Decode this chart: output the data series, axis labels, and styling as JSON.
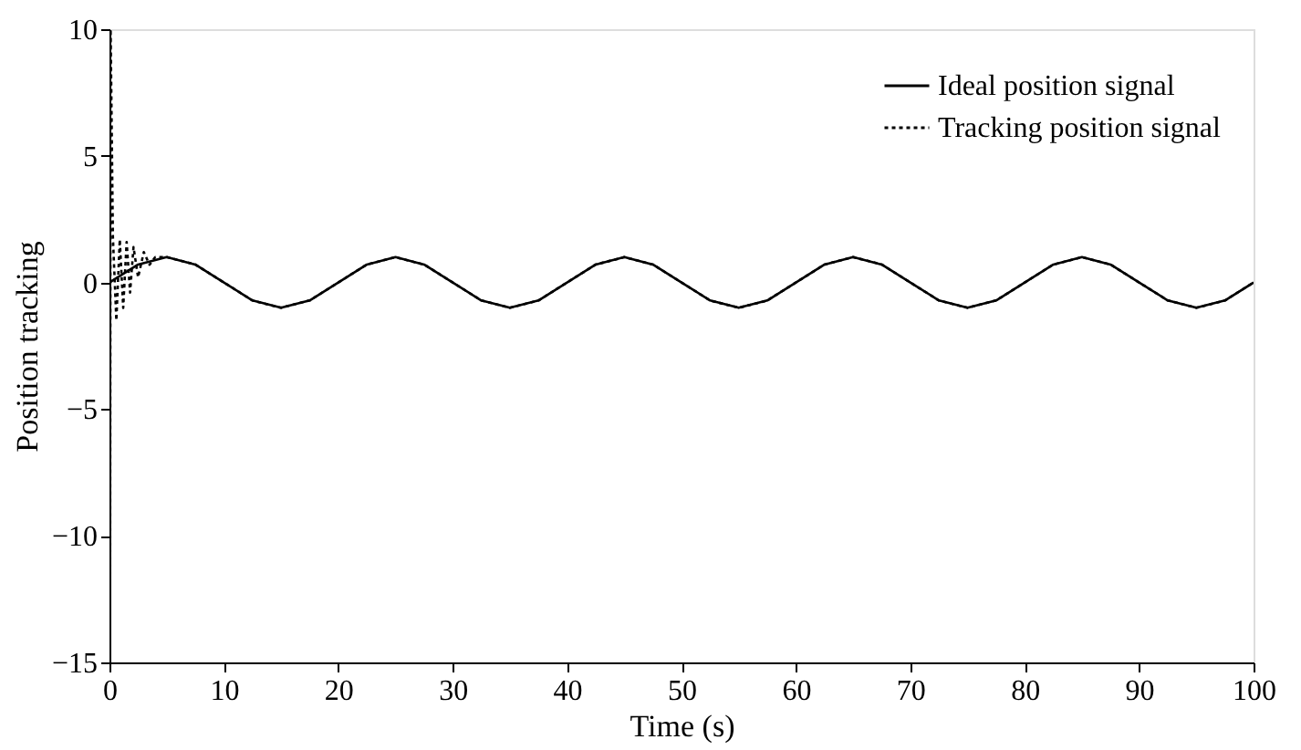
{
  "chart_data": {
    "type": "line",
    "xlabel": "Time (s)",
    "ylabel": "Position tracking",
    "xlim": [
      0,
      100
    ],
    "ylim": [
      -15,
      10
    ],
    "xticks": [
      0,
      10,
      20,
      30,
      40,
      50,
      60,
      70,
      80,
      90,
      100
    ],
    "yticks": [
      -15,
      -10,
      -5,
      0,
      5,
      10
    ],
    "grid": false,
    "legend": "top right",
    "series": [
      {
        "name": "Ideal position signal",
        "color": "#000000",
        "line_style": "solid",
        "x": [
          0,
          2.5,
          5,
          7.5,
          10,
          12.5,
          15,
          17.5,
          20,
          22.5,
          25,
          27.5,
          30,
          32.5,
          35,
          37.5,
          40,
          42.5,
          45,
          47.5,
          50,
          52.5,
          55,
          57.5,
          60,
          62.5,
          65,
          67.5,
          70,
          72.5,
          75,
          77.5,
          80,
          82.5,
          85,
          87.5,
          90,
          92.5,
          95,
          97.5,
          100
        ],
        "values": [
          0,
          0.71,
          1,
          0.71,
          0,
          -0.71,
          -1,
          -0.71,
          0,
          0.71,
          1,
          0.71,
          0,
          -0.71,
          -1,
          -0.71,
          0,
          0.71,
          1,
          0.71,
          0,
          -0.71,
          -1,
          -0.71,
          0,
          0.71,
          1,
          0.71,
          0,
          -0.71,
          -1,
          -0.71,
          0,
          0.71,
          1,
          0.71,
          0,
          -0.71,
          -1,
          -0.71,
          0
        ]
      },
      {
        "name": "Tracking position signal",
        "color": "#000000",
        "line_style": "dotted",
        "x": [
          0,
          0.05,
          0.1,
          0.3,
          0.6,
          0.9,
          1.2,
          1.5,
          1.8,
          2.1,
          2.5,
          3,
          3.5,
          4,
          5,
          7.5,
          10,
          12.5,
          15,
          17.5,
          20,
          22.5,
          25,
          27.5,
          30,
          32.5,
          35,
          37.5,
          40,
          42.5,
          45,
          47.5,
          50,
          52.5,
          55,
          57.5,
          60,
          62.5,
          65,
          67.5,
          70,
          72.5,
          75,
          77.5,
          80,
          82.5,
          85,
          87.5,
          90,
          92.5,
          95,
          97.5,
          100
        ],
        "values": [
          0,
          -15,
          10,
          1.8,
          -1.5,
          1.7,
          -1.0,
          1.6,
          -0.4,
          1.4,
          0.2,
          1.2,
          0.7,
          1.0,
          1,
          0.71,
          0,
          -0.71,
          -1,
          -0.71,
          0,
          0.71,
          1,
          0.71,
          0,
          -0.71,
          -1,
          -0.71,
          0,
          0.71,
          1,
          0.71,
          0,
          -0.71,
          -1,
          -0.71,
          0,
          0.71,
          1,
          0.71,
          0,
          -0.71,
          -1,
          -0.71,
          0,
          0.71,
          1,
          0.71,
          0,
          -0.71,
          -1,
          -0.71,
          0
        ]
      }
    ]
  }
}
